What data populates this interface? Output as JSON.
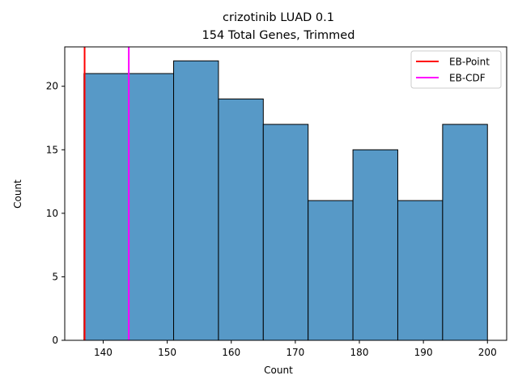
{
  "chart_data": {
    "type": "bar",
    "title_line1": "crizotinib LUAD 0.1",
    "title_line2": "154 Total Genes, Trimmed",
    "xlabel": "Count",
    "ylabel": "Count",
    "xlim": [
      134,
      203
    ],
    "ylim": [
      0,
      23.1
    ],
    "x_ticks": [
      140,
      150,
      160,
      170,
      180,
      190,
      200
    ],
    "y_ticks": [
      0,
      5,
      10,
      15,
      20
    ],
    "bin_edges": [
      137,
      144,
      151,
      158,
      165,
      172,
      179,
      186,
      193,
      200
    ],
    "values": [
      21,
      21,
      22,
      19,
      17,
      11,
      15,
      11,
      17
    ],
    "bar_color": "#5799c7",
    "lines": [
      {
        "name": "EB-Point",
        "x": 137.1,
        "color": "#ff0000"
      },
      {
        "name": "EB-CDF",
        "x": 144.0,
        "color": "#ff00ff"
      }
    ],
    "legend_position": "top-right",
    "grid": false
  }
}
